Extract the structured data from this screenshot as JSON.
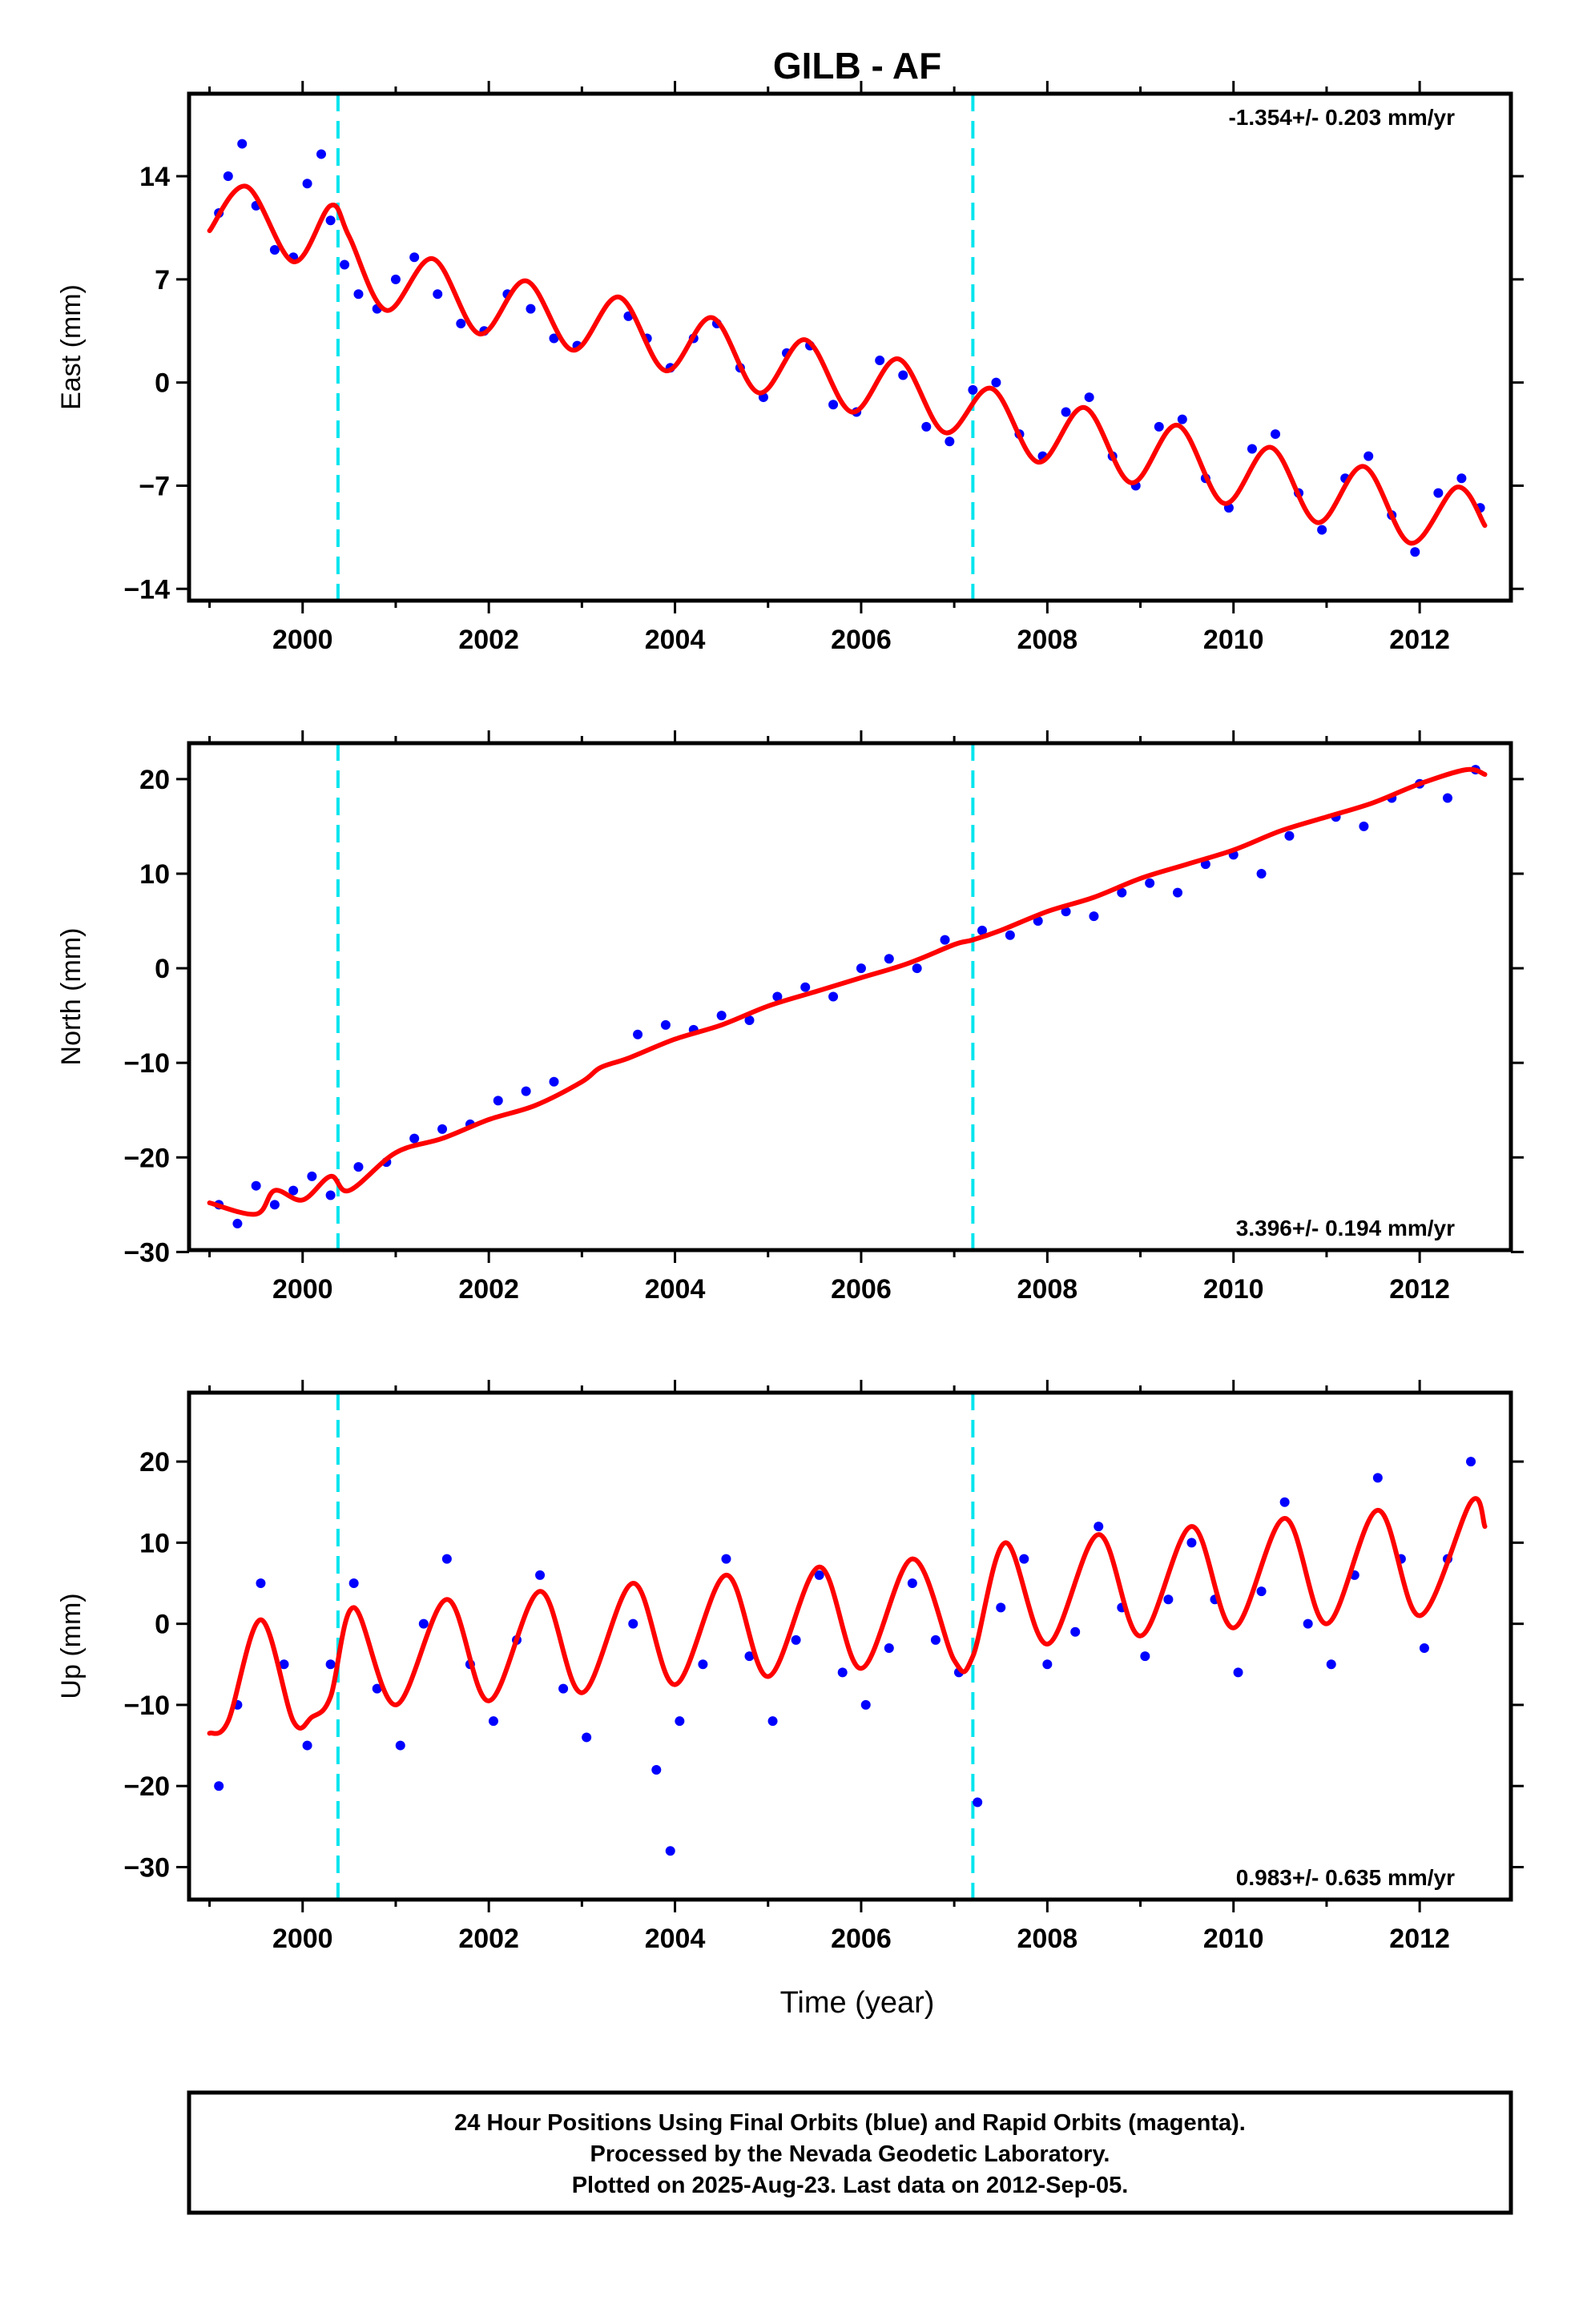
{
  "title": "GILB - AF",
  "xlabel": "Time (year)",
  "footer": [
    "24 Hour Positions Using Final Orbits (blue) and Rapid Orbits (magenta).",
    "Processed by the Nevada Geodetic Laboratory.",
    "Plotted on 2025-Aug-23. Last data on 2012-Sep-05."
  ],
  "colors": {
    "points": "#0000ff",
    "fit": "#ff0000",
    "steps": "#00e5ee",
    "frame": "#000000"
  },
  "chart_data": [
    {
      "type": "scatter",
      "ylabel": "East (mm)",
      "rate_label": "-1.354+/- 0.203 mm/yr",
      "xlim": [
        1998.78,
        2012.98
      ],
      "ylim": [
        -14.8,
        19.6
      ],
      "xticks": [
        2000,
        2002,
        2004,
        2006,
        2008,
        2010,
        2012
      ],
      "yticks": [
        -14,
        -7,
        0,
        7,
        14
      ],
      "step_lines": [
        2000.38,
        2007.2
      ],
      "fit": {
        "x": [
          1999.0,
          1999.4,
          1999.9,
          2000.3,
          2000.5,
          2000.9,
          2001.4,
          2001.9,
          2002.4,
          2002.9,
          2003.4,
          2003.9,
          2004.4,
          2004.9,
          2005.4,
          2005.9,
          2006.4,
          2006.9,
          2007.4,
          2007.9,
          2008.4,
          2008.9,
          2009.4,
          2009.9,
          2010.4,
          2010.9,
          2011.4,
          2011.9,
          2012.4,
          2012.7
        ],
        "y": [
          10.3,
          13.3,
          8.2,
          12.0,
          9.9,
          4.9,
          8.4,
          3.3,
          6.9,
          2.2,
          5.8,
          0.8,
          4.4,
          -0.7,
          2.9,
          -2.0,
          1.6,
          -3.4,
          -0.4,
          -5.4,
          -1.7,
          -6.8,
          -2.9,
          -8.2,
          -4.4,
          -9.5,
          -5.7,
          -10.9,
          -7.1,
          -9.7
        ]
      },
      "scatter_x": [
        1999.1,
        1999.2,
        1999.35,
        1999.5,
        1999.7,
        1999.9,
        2000.05,
        2000.2,
        2000.3,
        2000.45,
        2000.6,
        2000.8,
        2001.0,
        2001.2,
        2001.45,
        2001.7,
        2001.95,
        2002.2,
        2002.45,
        2002.7,
        2002.95,
        2003.5,
        2003.7,
        2003.95,
        2004.2,
        2004.45,
        2004.7,
        2004.95,
        2005.2,
        2005.45,
        2005.7,
        2005.95,
        2006.2,
        2006.45,
        2006.7,
        2006.95,
        2007.2,
        2007.45,
        2007.7,
        2007.95,
        2008.2,
        2008.45,
        2008.7,
        2008.95,
        2009.2,
        2009.45,
        2009.7,
        2009.95,
        2010.2,
        2010.45,
        2010.7,
        2010.95,
        2011.2,
        2011.45,
        2011.7,
        2011.95,
        2012.2,
        2012.45,
        2012.65
      ],
      "scatter_y": [
        11.5,
        14.0,
        16.2,
        12.0,
        9.0,
        8.5,
        13.5,
        15.5,
        11.0,
        8.0,
        6.0,
        5.0,
        7.0,
        8.5,
        6.0,
        4.0,
        3.5,
        6.0,
        5.0,
        3.0,
        2.5,
        4.5,
        3.0,
        1.0,
        3.0,
        4.0,
        1.0,
        -1.0,
        2.0,
        2.5,
        -1.5,
        -2.0,
        1.5,
        0.5,
        -3.0,
        -4.0,
        -0.5,
        0.0,
        -3.5,
        -5.0,
        -2.0,
        -1.0,
        -5.0,
        -7.0,
        -3.0,
        -2.5,
        -6.5,
        -8.5,
        -4.5,
        -3.5,
        -7.5,
        -10.0,
        -6.5,
        -5.0,
        -9.0,
        -11.5,
        -7.5,
        -6.5,
        -8.5
      ]
    },
    {
      "type": "scatter",
      "ylabel": "North (mm)",
      "rate_label": "3.396+/- 0.194 mm/yr",
      "xlim": [
        1998.78,
        2012.98
      ],
      "ylim": [
        -29.8,
        23.8
      ],
      "xticks": [
        2000,
        2002,
        2004,
        2006,
        2008,
        2010,
        2012
      ],
      "yticks": [
        -30,
        -20,
        -10,
        0,
        10,
        20
      ],
      "step_lines": [
        2000.38,
        2007.2
      ],
      "fit": {
        "x": [
          1999.0,
          1999.5,
          1999.7,
          2000.0,
          2000.3,
          2000.5,
          2001.0,
          2001.5,
          2002.0,
          2002.5,
          2003.0,
          2003.2,
          2003.5,
          2004.0,
          2004.5,
          2005.0,
          2005.5,
          2006.0,
          2006.5,
          2007.0,
          2007.2,
          2007.5,
          2008.0,
          2008.5,
          2009.0,
          2009.5,
          2010.0,
          2010.5,
          2011.0,
          2011.5,
          2012.0,
          2012.5,
          2012.7
        ],
        "y": [
          -24.8,
          -26.0,
          -23.5,
          -24.5,
          -22.0,
          -23.5,
          -19.5,
          -18.0,
          -16.0,
          -14.5,
          -12.0,
          -10.5,
          -9.5,
          -7.5,
          -6.0,
          -4.0,
          -2.5,
          -1.0,
          0.5,
          2.5,
          3.0,
          4.0,
          6.0,
          7.5,
          9.5,
          11.0,
          12.5,
          14.5,
          16.0,
          17.5,
          19.5,
          21.0,
          20.5
        ]
      },
      "scatter_x": [
        1999.1,
        1999.3,
        1999.5,
        1999.7,
        1999.9,
        2000.1,
        2000.3,
        2000.6,
        2000.9,
        2001.2,
        2001.5,
        2001.8,
        2002.1,
        2002.4,
        2002.7,
        2003.6,
        2003.9,
        2004.2,
        2004.5,
        2004.8,
        2005.1,
        2005.4,
        2005.7,
        2006.0,
        2006.3,
        2006.6,
        2006.9,
        2007.3,
        2007.6,
        2007.9,
        2008.2,
        2008.5,
        2008.8,
        2009.1,
        2009.4,
        2009.7,
        2010.0,
        2010.3,
        2010.6,
        2011.1,
        2011.4,
        2011.7,
        2012.0,
        2012.3,
        2012.6
      ],
      "scatter_y": [
        -25.0,
        -27.0,
        -23.0,
        -25.0,
        -23.5,
        -22.0,
        -24.0,
        -21.0,
        -20.5,
        -18.0,
        -17.0,
        -16.5,
        -14.0,
        -13.0,
        -12.0,
        -7.0,
        -6.0,
        -6.5,
        -5.0,
        -5.5,
        -3.0,
        -2.0,
        -3.0,
        0.0,
        1.0,
        0.0,
        3.0,
        4.0,
        3.5,
        5.0,
        6.0,
        5.5,
        8.0,
        9.0,
        8.0,
        11.0,
        12.0,
        10.0,
        14.0,
        16.0,
        15.0,
        18.0,
        19.5,
        18.0,
        21.0
      ]
    },
    {
      "type": "scatter",
      "ylabel": "Up (mm)",
      "rate_label": "0.983+/- 0.635 mm/yr",
      "xlim": [
        1998.78,
        2012.98
      ],
      "ylim": [
        -34.0,
        28.5
      ],
      "xticks": [
        2000,
        2002,
        2004,
        2006,
        2008,
        2010,
        2012
      ],
      "yticks": [
        -30,
        -20,
        -10,
        0,
        10,
        20
      ],
      "step_lines": [
        2000.38,
        2007.2
      ],
      "fit": {
        "x": [
          1999.0,
          1999.2,
          1999.55,
          1999.9,
          2000.1,
          2000.3,
          2000.55,
          2001.0,
          2001.55,
          2002.0,
          2002.55,
          2003.0,
          2003.55,
          2004.0,
          2004.55,
          2005.0,
          2005.55,
          2006.0,
          2006.55,
          2007.0,
          2007.2,
          2007.55,
          2008.0,
          2008.55,
          2009.0,
          2009.55,
          2010.0,
          2010.55,
          2011.0,
          2011.55,
          2012.0,
          2012.55,
          2012.7
        ],
        "y": [
          -13.5,
          -12.0,
          0.5,
          -12.0,
          -11.5,
          -9.0,
          2.0,
          -10.0,
          3.0,
          -9.5,
          4.0,
          -8.5,
          5.0,
          -7.5,
          6.0,
          -6.5,
          7.0,
          -5.5,
          8.0,
          -4.5,
          -4.0,
          10.0,
          -2.5,
          11.0,
          -1.5,
          12.0,
          -0.5,
          13.0,
          0.0,
          14.0,
          1.0,
          15.0,
          12.0
        ]
      },
      "scatter_x": [
        1999.1,
        1999.3,
        1999.55,
        1999.8,
        2000.05,
        2000.3,
        2000.55,
        2000.8,
        2001.05,
        2001.3,
        2001.55,
        2001.8,
        2002.05,
        2002.3,
        2002.55,
        2002.8,
        2003.05,
        2003.55,
        2003.8,
        2003.95,
        2004.05,
        2004.3,
        2004.55,
        2004.8,
        2005.05,
        2005.3,
        2005.55,
        2005.8,
        2006.05,
        2006.3,
        2006.55,
        2006.8,
        2007.05,
        2007.25,
        2007.5,
        2007.75,
        2008.0,
        2008.3,
        2008.55,
        2008.8,
        2009.05,
        2009.3,
        2009.55,
        2009.8,
        2010.05,
        2010.3,
        2010.55,
        2010.8,
        2011.05,
        2011.3,
        2011.55,
        2011.8,
        2012.05,
        2012.3,
        2012.55
      ],
      "scatter_y": [
        -20.0,
        -10.0,
        5.0,
        -5.0,
        -15.0,
        -5.0,
        5.0,
        -8.0,
        -15.0,
        0.0,
        8.0,
        -5.0,
        -12.0,
        -2.0,
        6.0,
        -8.0,
        -14.0,
        0.0,
        -18.0,
        -28.0,
        -12.0,
        -5.0,
        8.0,
        -4.0,
        -12.0,
        -2.0,
        6.0,
        -6.0,
        -10.0,
        -3.0,
        5.0,
        -2.0,
        -6.0,
        -22.0,
        2.0,
        8.0,
        -5.0,
        -1.0,
        12.0,
        2.0,
        -4.0,
        3.0,
        10.0,
        3.0,
        -6.0,
        4.0,
        15.0,
        0.0,
        -5.0,
        6.0,
        18.0,
        8.0,
        -3.0,
        8.0,
        20.0
      ]
    }
  ]
}
